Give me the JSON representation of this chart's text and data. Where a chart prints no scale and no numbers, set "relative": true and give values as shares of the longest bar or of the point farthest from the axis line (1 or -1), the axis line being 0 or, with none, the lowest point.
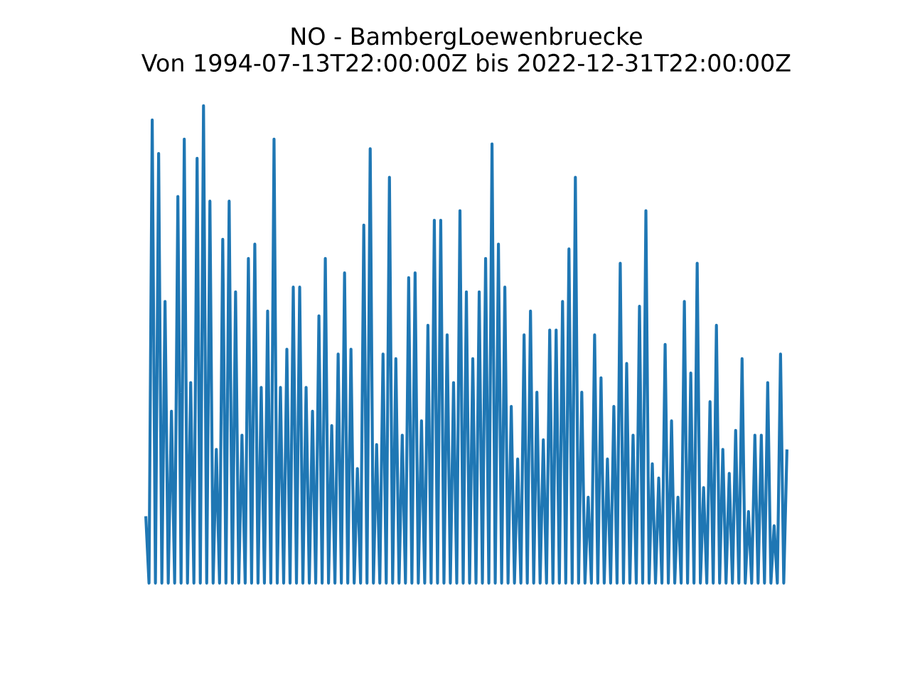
{
  "chart_data": {
    "type": "line",
    "title": "NO - BambergLoewenbruecke",
    "subtitle": "Von 1994-07-13T22:00:00Z bis 2022-12-31T22:00:00Z",
    "relative": true,
    "tick_labels": false,
    "marker": "none",
    "line_style": "solid",
    "color": "#1f77b4",
    "categories": [
      null,
      null,
      null,
      null,
      null,
      null,
      null,
      null,
      null,
      null,
      null,
      null,
      null,
      null,
      null,
      null,
      null,
      null,
      null,
      null,
      null,
      null,
      null,
      null,
      null,
      null,
      null,
      null,
      null,
      null,
      null,
      null,
      null,
      null,
      null,
      null,
      null,
      null,
      null,
      null,
      null,
      null,
      null,
      null,
      null,
      null,
      null,
      null,
      null,
      null,
      null,
      null,
      null,
      null,
      null,
      null,
      null,
      null,
      null,
      null,
      null,
      null,
      null,
      null,
      null,
      null,
      null,
      null,
      null,
      null,
      null,
      null,
      null,
      null,
      null,
      null,
      null,
      null,
      null,
      null,
      null,
      null,
      null,
      null,
      null,
      null,
      null,
      null,
      null,
      null,
      null,
      null,
      null,
      null,
      null,
      null,
      null,
      null,
      null,
      null,
      null,
      null,
      null,
      null,
      null,
      null,
      null,
      null,
      null,
      null,
      null,
      null,
      null,
      null,
      null,
      null,
      null,
      null,
      null,
      null,
      null,
      null,
      null,
      null,
      null,
      null,
      null,
      null,
      null,
      null,
      null,
      null,
      null,
      null,
      null,
      null,
      null,
      null,
      null,
      null,
      null,
      null,
      null,
      null,
      null,
      null,
      null,
      null,
      null,
      null,
      null,
      null,
      null,
      null,
      null,
      null,
      null,
      null,
      null,
      null,
      null,
      null,
      null,
      null,
      null,
      null,
      null,
      null,
      null,
      null,
      null,
      null,
      null,
      null,
      null,
      null,
      null,
      null,
      null,
      null,
      null,
      null,
      null,
      null,
      null,
      null,
      null,
      null,
      null,
      null,
      null,
      null,
      null,
      null,
      null,
      null,
      null,
      null,
      null,
      null,
      null
    ],
    "values": [
      0.14,
      0,
      0.97,
      0,
      0.9,
      0,
      0.59,
      0,
      0.36,
      0,
      0.81,
      0,
      0.93,
      0,
      0.42,
      0,
      0.89,
      0,
      1,
      0,
      0.8,
      0,
      0.28,
      0,
      0.72,
      0,
      0.8,
      0,
      0.61,
      0,
      0.31,
      0,
      0.68,
      0,
      0.71,
      0,
      0.41,
      0,
      0.57,
      0,
      0.93,
      0,
      0.41,
      0,
      0.49,
      0,
      0.62,
      0,
      0.62,
      0,
      0.41,
      0,
      0.36,
      0,
      0.56,
      0,
      0.68,
      0,
      0.33,
      0,
      0.48,
      0,
      0.65,
      0,
      0.49,
      0,
      0.24,
      0,
      0.75,
      0,
      0.91,
      0,
      0.29,
      0,
      0.48,
      0,
      0.85,
      0,
      0.47,
      0,
      0.31,
      0,
      0.64,
      0,
      0.65,
      0,
      0.34,
      0,
      0.54,
      0,
      0.76,
      0,
      0.76,
      0,
      0.52,
      0,
      0.42,
      0,
      0.78,
      0,
      0.61,
      0,
      0.47,
      0,
      0.61,
      0,
      0.68,
      0,
      0.92,
      0,
      0.71,
      0,
      0.62,
      0,
      0.37,
      0,
      0.26,
      0,
      0.52,
      0,
      0.57,
      0,
      0.4,
      0,
      0.3,
      0,
      0.53,
      0,
      0.53,
      0,
      0.59,
      0,
      0.7,
      0,
      0.85,
      0,
      0.4,
      0,
      0.18,
      0,
      0.52,
      0,
      0.43,
      0,
      0.26,
      0,
      0.37,
      0,
      0.67,
      0,
      0.46,
      0,
      0.31,
      0,
      0.58,
      0,
      0.78,
      0,
      0.25,
      0,
      0.22,
      0,
      0.5,
      0,
      0.34,
      0,
      0.18,
      0,
      0.59,
      0,
      0.44,
      0,
      0.67,
      0,
      0.2,
      0,
      0.38,
      0,
      0.54,
      0,
      0.28,
      0,
      0.23,
      0,
      0.32,
      0,
      0.47,
      0,
      0.15,
      0,
      0.31,
      0,
      0.31,
      0,
      0.42,
      0,
      0.12,
      0,
      0.48,
      0,
      0.28
    ]
  }
}
